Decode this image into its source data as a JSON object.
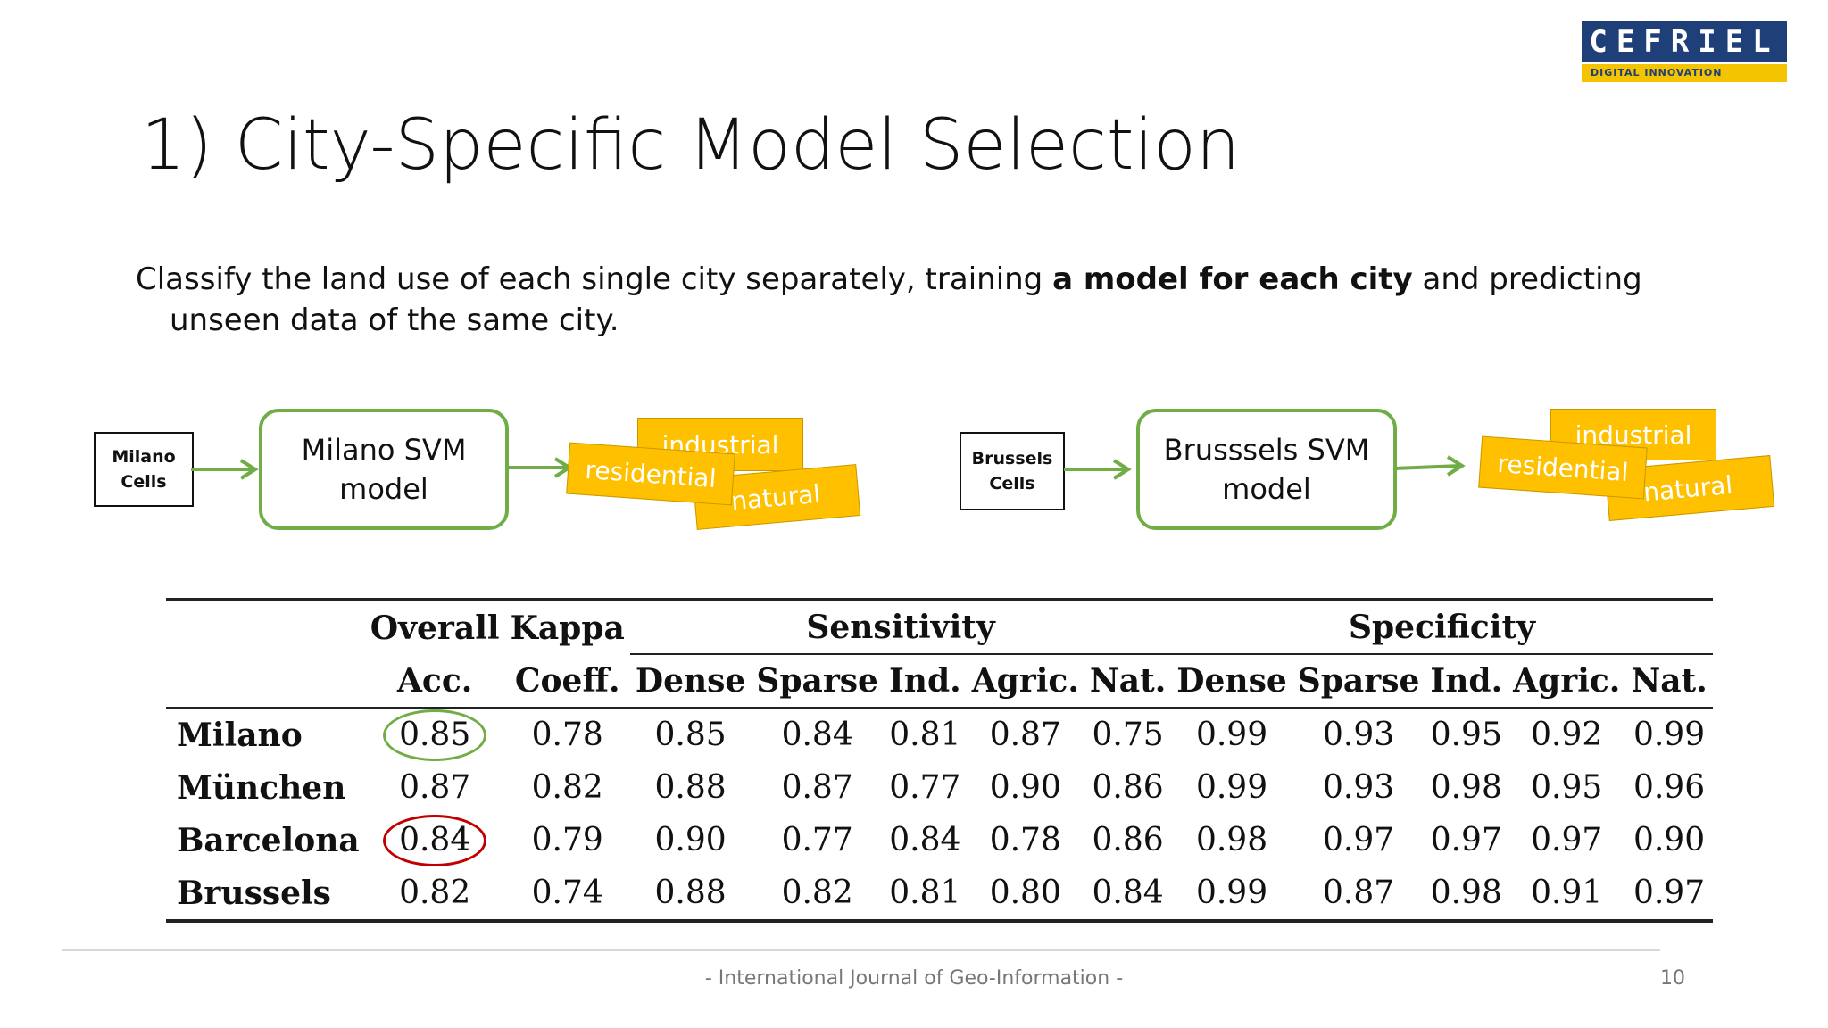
{
  "logo": {
    "name": "CEFRIEL",
    "tagline": "DIGITAL INNOVATION"
  },
  "slide": {
    "title": "1) City-Specific Model Selection",
    "desc_pre": "Classify the land use of each single city separately, training ",
    "desc_bold": "a model for each city",
    "desc_post": " and predicting unseen data of the same city."
  },
  "diagrams": [
    {
      "input": [
        "Milano",
        "Cells"
      ],
      "model": [
        "Milano SVM",
        "model"
      ],
      "labels": {
        "industrial": "industrial",
        "residential": "residential",
        "natural": "natural"
      }
    },
    {
      "input": [
        "Brussels",
        "Cells"
      ],
      "model": [
        "Brusssels SVM",
        "model"
      ],
      "labels": {
        "industrial": "industrial",
        "residential": "residential",
        "natural": "natural"
      }
    }
  ],
  "table": {
    "group_headers": {
      "overall": "Overall",
      "kappa": "Kappa",
      "sensitivity": "Sensitivity",
      "specificity": "Specificity"
    },
    "sub_headers": [
      "Acc.",
      "Coeff.",
      "Dense",
      "Sparse",
      "Ind.",
      "Agric.",
      "Nat.",
      "Dense",
      "Sparse",
      "Ind.",
      "Agric.",
      "Nat."
    ],
    "rows": [
      {
        "city": "Milano",
        "values": [
          "0.85",
          "0.78",
          "0.85",
          "0.84",
          "0.81",
          "0.87",
          "0.75",
          "0.99",
          "0.93",
          "0.95",
          "0.92",
          "0.99"
        ]
      },
      {
        "city": "München",
        "values": [
          "0.87",
          "0.82",
          "0.88",
          "0.87",
          "0.77",
          "0.90",
          "0.86",
          "0.99",
          "0.93",
          "0.98",
          "0.95",
          "0.96"
        ]
      },
      {
        "city": "Barcelona",
        "values": [
          "0.84",
          "0.79",
          "0.90",
          "0.77",
          "0.84",
          "0.78",
          "0.86",
          "0.98",
          "0.97",
          "0.97",
          "0.97",
          "0.90"
        ]
      },
      {
        "city": "Brussels",
        "values": [
          "0.82",
          "0.74",
          "0.88",
          "0.82",
          "0.81",
          "0.80",
          "0.84",
          "0.99",
          "0.87",
          "0.98",
          "0.91",
          "0.97"
        ]
      }
    ],
    "highlights": {
      "best_color": "#70ad47",
      "worst_color": "#c00000"
    }
  },
  "footer": {
    "text": "- International Journal of Geo-Information -",
    "page": "10"
  },
  "colors": {
    "model_border": "#70ad47",
    "arrow": "#70ad47",
    "note_fill": "#ffc000"
  }
}
